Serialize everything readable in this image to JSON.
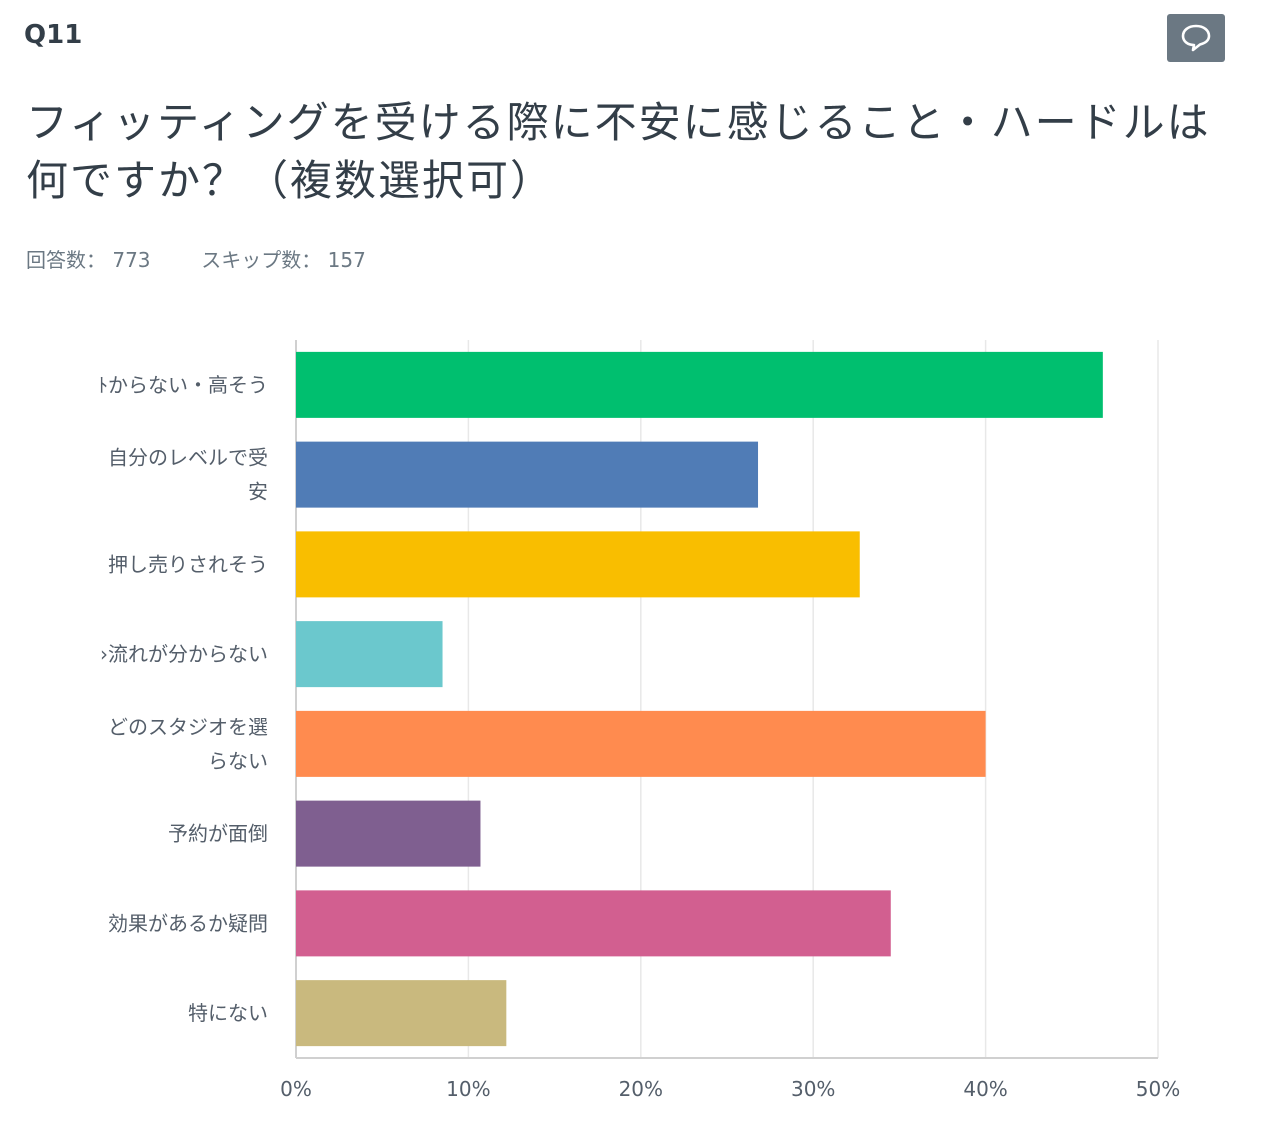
{
  "question": {
    "number": "Q11",
    "title": "フィッティングを受ける際に不安に感じること・ハードルは何ですか？（複数選択可）"
  },
  "stats": {
    "answered_label": "回答数：",
    "answered_value": "773",
    "skipped_label": "スキップ数：",
    "skipped_value": "157"
  },
  "toolbar": {
    "comment_icon": "speech-bubble-icon"
  },
  "chart_data": {
    "type": "bar",
    "orientation": "horizontal",
    "categories": [
      "料金が分からない・高そう",
      "自分のレベルで受けていいか不安",
      "押し売りされそう",
      "当日の流れが分からない",
      "どのスタジオを選べばいいか分からない",
      "予約が面倒",
      "効果があるか疑問",
      "特にない"
    ],
    "category_label_lines": [
      [
        "ﾄからない・高そう"
      ],
      [
        "自分のレベルで受",
        "安"
      ],
      [
        "押し売りされそう"
      ],
      [
        "›流れが分からない"
      ],
      [
        "どのスタジオを選",
        "らない"
      ],
      [
        "予約が面倒"
      ],
      [
        "効果があるか疑問"
      ],
      [
        "特にない"
      ]
    ],
    "values": [
      46.8,
      26.8,
      32.7,
      8.5,
      40.0,
      10.7,
      34.5,
      12.2
    ],
    "colors": [
      "#00bf6f",
      "#507cb6",
      "#f9be00",
      "#6bc8cd",
      "#ff8b4f",
      "#7f5f90",
      "#d25f90",
      "#c9b97e"
    ],
    "xlim": [
      0,
      50
    ],
    "xticks": [
      0,
      10,
      20,
      30,
      40,
      50
    ],
    "xtick_labels": [
      "0%",
      "10%",
      "20%",
      "30%",
      "40%",
      "50%"
    ],
    "grid": true,
    "xlabel": "",
    "ylabel": ""
  }
}
